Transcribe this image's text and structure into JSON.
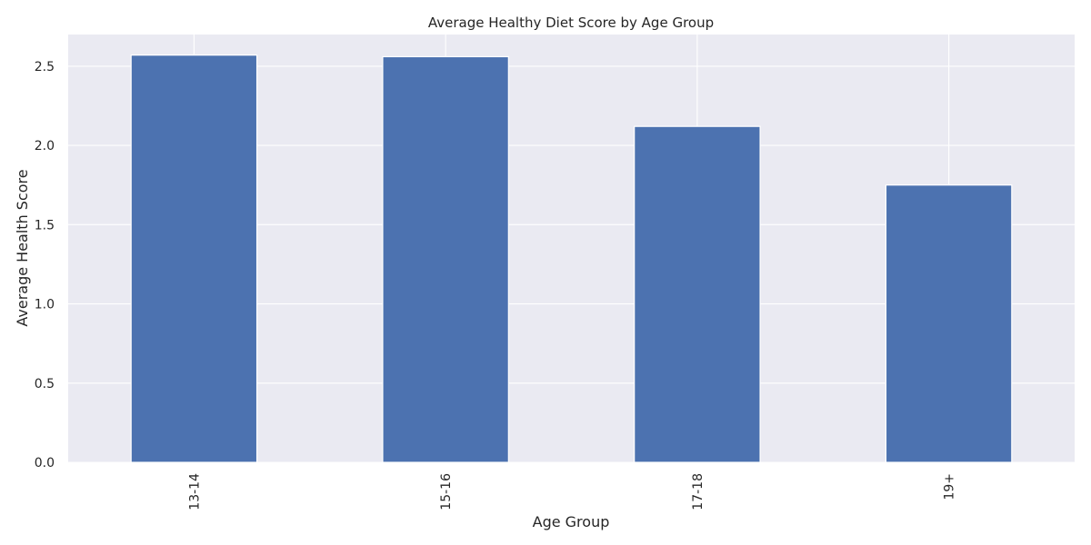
{
  "chart_data": {
    "type": "bar",
    "title": "Average Healthy Diet Score by Age Group",
    "xlabel": "Age Group",
    "ylabel": "Average Health Score",
    "categories": [
      "13-14",
      "15-16",
      "17-18",
      "19+"
    ],
    "values": [
      2.57,
      2.56,
      2.12,
      1.75
    ],
    "ylim": [
      0,
      2.7
    ],
    "yticks": [
      0.0,
      0.5,
      1.0,
      1.5,
      2.0,
      2.5
    ],
    "ytick_labels": [
      "0.0",
      "0.5",
      "1.0",
      "1.5",
      "2.0",
      "2.5"
    ],
    "grid": true,
    "bar_color": "#4c72b0",
    "background_color": "#eaeaf2",
    "x_tick_rotation": "vertical"
  }
}
